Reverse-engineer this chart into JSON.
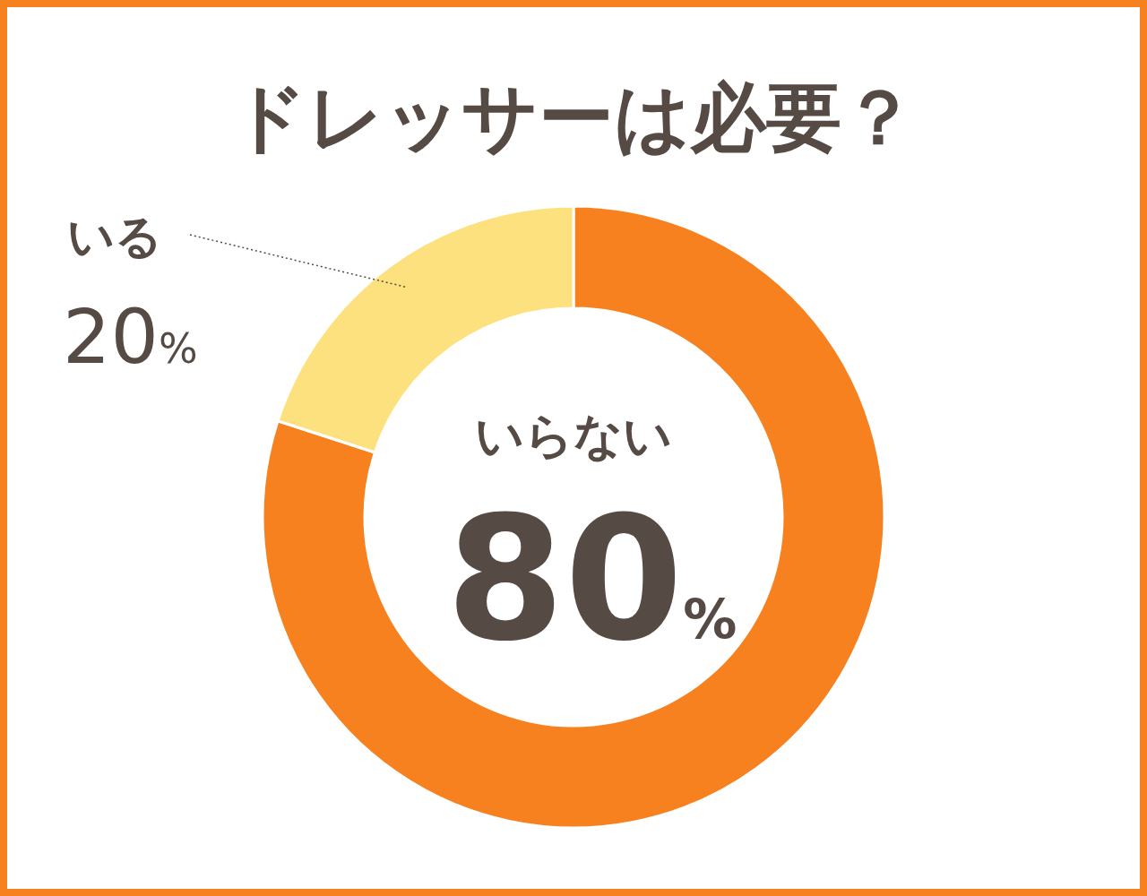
{
  "chart_data": {
    "type": "donut",
    "title": "ドレッサーは必要？",
    "categories": [
      "いらない",
      "いる"
    ],
    "values": [
      80,
      20
    ],
    "colors": [
      "#f7811e",
      "#fde17f"
    ],
    "value_labels": [
      "80%",
      "20%"
    ]
  }
}
